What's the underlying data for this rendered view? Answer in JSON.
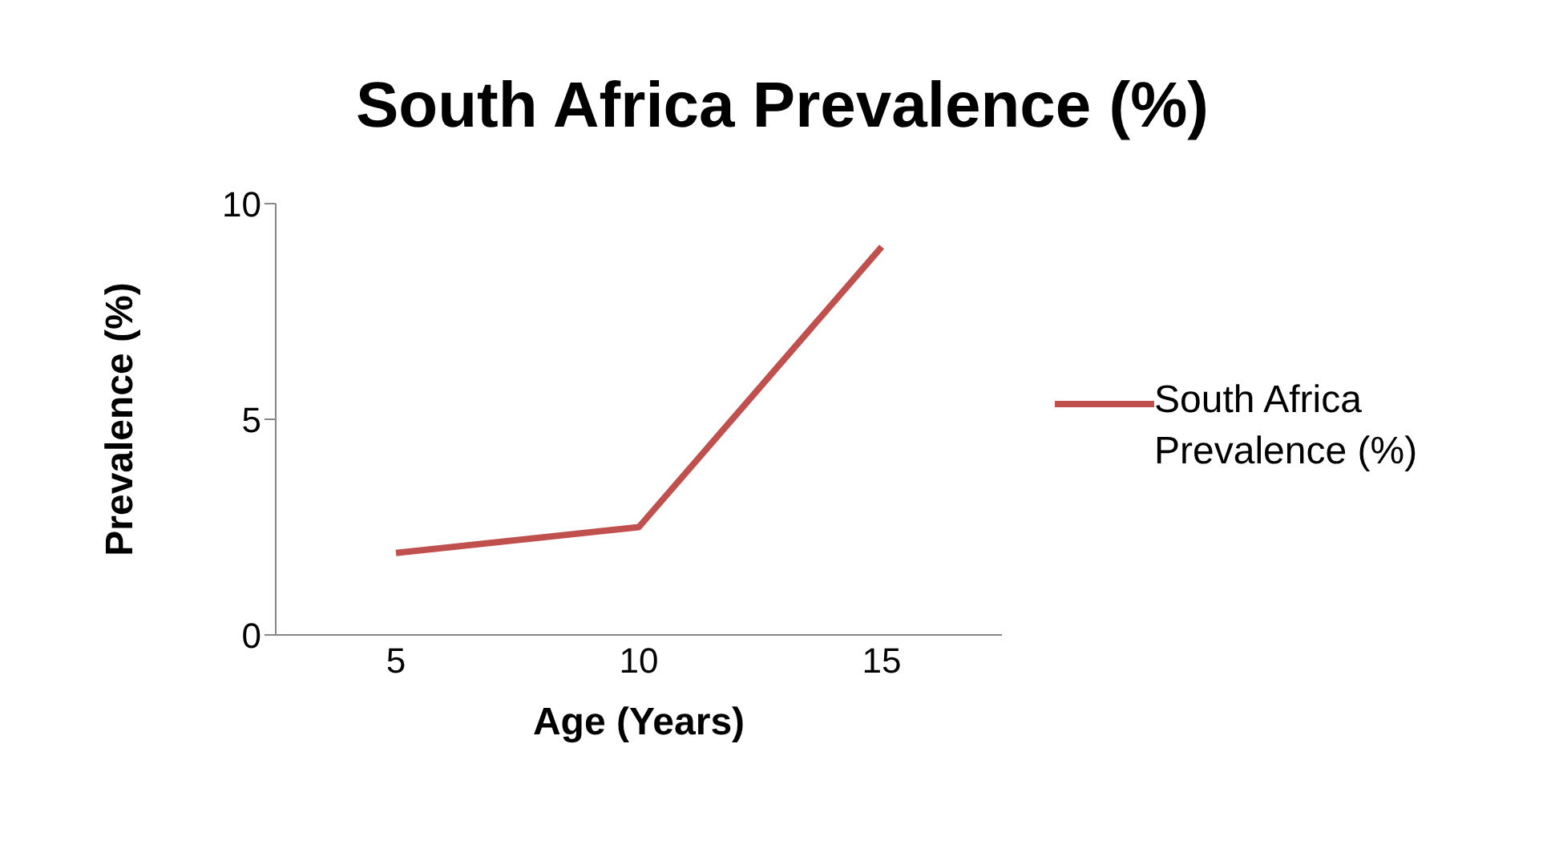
{
  "chart_data": {
    "type": "line",
    "title": "South Africa Prevalence (%)",
    "xlabel": "Age (Years)",
    "ylabel": "Prevalence (%)",
    "categories": [
      "5",
      "10",
      "15"
    ],
    "series": [
      {
        "name": "South Africa Prevalence (%)",
        "color": "#c0504d",
        "values": [
          1.9,
          2.5,
          9.0
        ]
      }
    ],
    "ylim": [
      0,
      10
    ],
    "yticks": [
      0,
      5,
      10
    ],
    "grid": false,
    "legend": "right",
    "marker": "none",
    "line_style": "solid"
  }
}
